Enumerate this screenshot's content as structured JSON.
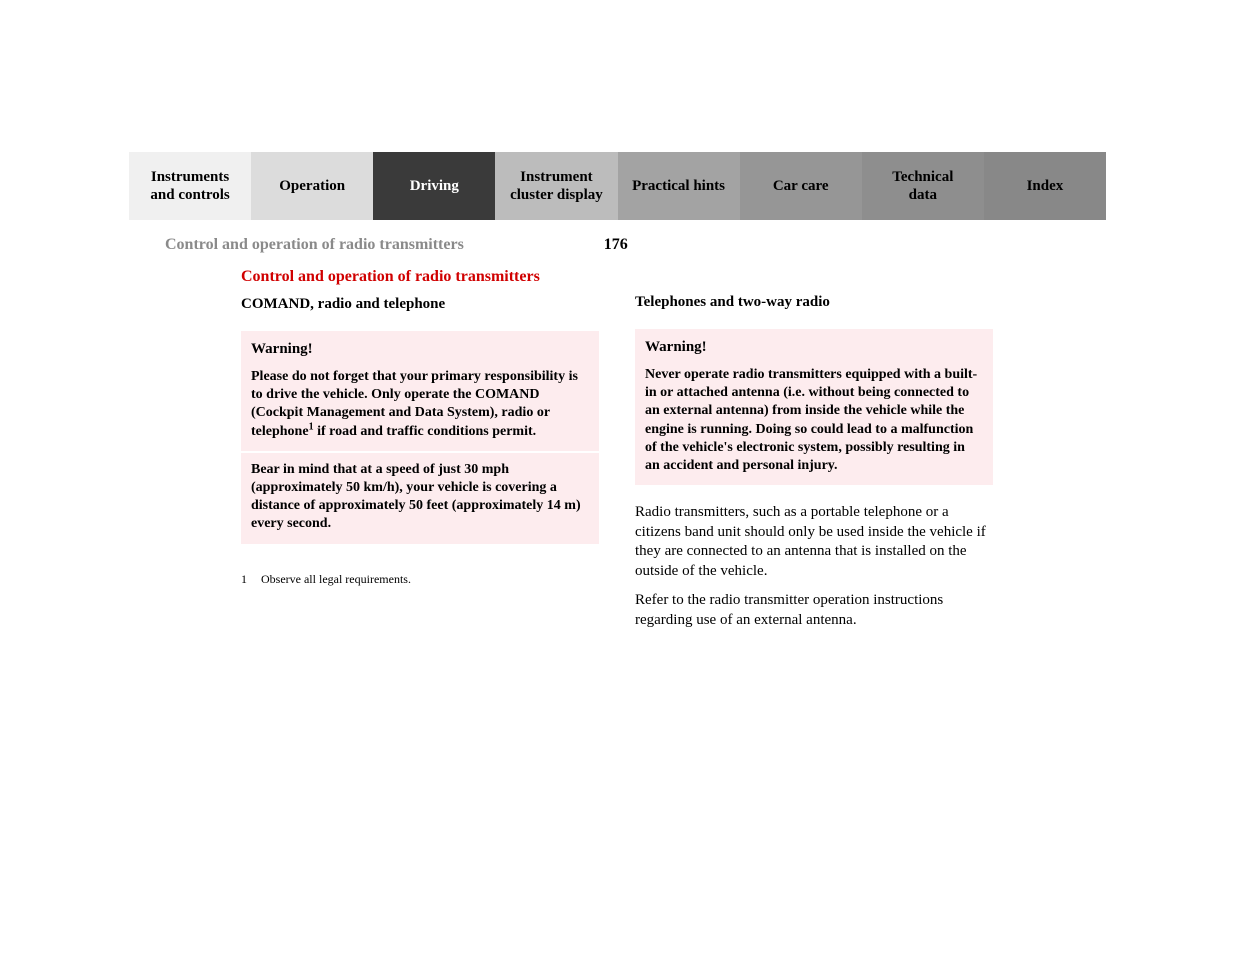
{
  "tabs": [
    {
      "label": "Instruments\nand controls",
      "bg": "#f0f0f0",
      "active": false
    },
    {
      "label": "Operation",
      "bg": "#dcdcdc",
      "active": false
    },
    {
      "label": "Driving",
      "bg": "#3a3a3a",
      "active": true
    },
    {
      "label": "Instrument\ncluster display",
      "bg": "#bcbcbc",
      "active": false
    },
    {
      "label": "Practical hints",
      "bg": "#a3a3a3",
      "active": false
    },
    {
      "label": "Car care",
      "bg": "#969696",
      "active": false
    },
    {
      "label": "Technical\ndata",
      "bg": "#8e8e8e",
      "active": false
    },
    {
      "label": "Index",
      "bg": "#888888",
      "active": false
    }
  ],
  "header": {
    "section_label": "Control and operation of radio transmitters",
    "page_number": "176"
  },
  "left": {
    "title": "Control and operation of radio transmitters",
    "subtitle": "COMAND, radio and telephone",
    "warning_title": "Warning!",
    "warning_p1_a": "Please do not forget that your primary responsibility is to drive the vehicle. Only operate the COMAND (Cockpit Management and Data System), radio or telephone",
    "warning_p1_b": " if road and traffic conditions permit.",
    "warning_p2": "Bear in mind that at a speed of just 30 mph (approximately 50 km/h), your vehicle is covering a distance of approximately 50 feet (approximately 14 m) every second.",
    "footnote_num": "1",
    "footnote_text": "Observe all legal requirements."
  },
  "right": {
    "subtitle": "Telephones and two-way radio",
    "warning_title": "Warning!",
    "warning_p1": "Never operate radio transmitters equipped with a built-in or attached antenna (i.e. without being connected to an external antenna) from inside the vehicle while the engine is running. Doing so could lead to a malfunction of the vehicle's electronic system, possibly resulting in an accident and personal injury.",
    "para1": "Radio transmitters, such as a portable telephone or a citizens band unit should only be used inside the vehicle if they are connected to an antenna that is installed on the outside of the vehicle.",
    "para2": "Refer to the radio transmitter operation instructions regarding use of an external antenna."
  },
  "colors": {
    "title_red": "#d00000",
    "warning_bg": "#fdecee",
    "section_label": "#8a8a8a"
  }
}
